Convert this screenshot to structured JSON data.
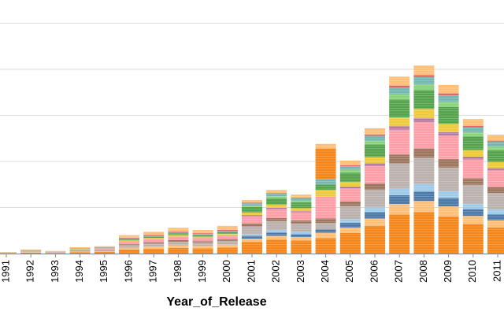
{
  "chart_data": {
    "type": "bar",
    "stacked": true,
    "xlabel": "Year_of_Release",
    "ylabel": "",
    "ylim": [
      0,
      1470
    ],
    "y_gridlines": [
      0,
      250,
      500,
      750,
      1000,
      1250
    ],
    "grid": true,
    "legend": "none",
    "categories": [
      "1991",
      "1992",
      "1993",
      "1994",
      "1995",
      "1996",
      "1997",
      "1998",
      "1999",
      "2000",
      "2001",
      "2002",
      "2003",
      "2004",
      "2005",
      "2006",
      "2007",
      "2008",
      "2009",
      "2010",
      "2011"
    ],
    "values": [
      8,
      22,
      14,
      34,
      40,
      100,
      118,
      140,
      128,
      150,
      290,
      345,
      320,
      595,
      505,
      680,
      960,
      1020,
      915,
      730,
      645
    ],
    "colors": {
      "orange": "#f58518",
      "light_orange": "#ffbf79",
      "blue": "#4c78a8",
      "light_blue": "#9ecae9",
      "green": "#54a24b",
      "light_green": "#88d27a",
      "yellow": "#eeca3b",
      "teal": "#72b7b2",
      "pink": "#ff9da6",
      "red": "#e45756",
      "brown": "#9d755d",
      "tan": "#d6a5c9",
      "grey": "#bab0ac",
      "purple": "#b279a2",
      "gridline": "#dddddd",
      "axis": "#888888"
    }
  }
}
